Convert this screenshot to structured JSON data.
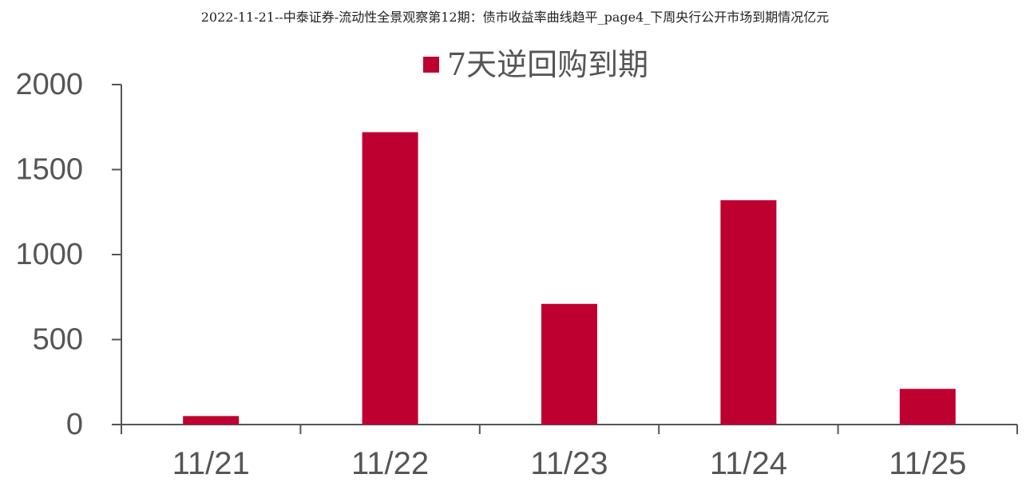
{
  "page": {
    "title": "2022-11-21--中泰证券-流动性全景观察第12期：债市收益率曲线趋平_page4_下周央行公开市场到期情况亿元"
  },
  "colors": {
    "bar": "#BE0030",
    "axis": "#555555",
    "text": "#555555"
  },
  "chart_data": {
    "type": "bar",
    "title": "",
    "xlabel": "",
    "ylabel": "",
    "categories": [
      "11/21",
      "11/22",
      "11/23",
      "11/24",
      "11/25"
    ],
    "series": [
      {
        "name": "7天逆回购到期",
        "values": [
          50,
          1720,
          710,
          1320,
          210
        ]
      }
    ],
    "ylim": [
      0,
      2000
    ],
    "yticks": [
      0,
      500,
      1000,
      1500,
      2000
    ],
    "ytick_labels": [
      "0",
      "500",
      "1000",
      "1500",
      "2000"
    ],
    "grid": false,
    "legend": "top-center"
  }
}
